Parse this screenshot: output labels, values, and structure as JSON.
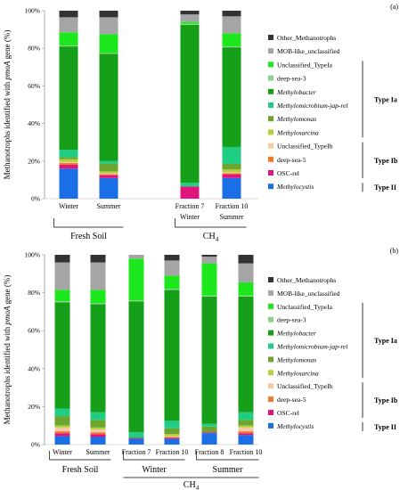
{
  "colors": {
    "Methylocystis": "#1a6fe6",
    "OSC-rel": "#e0147d",
    "deep-sea-5": "#f07a2a",
    "Unclassified_TypeIb": "#f7c9a6",
    "Methylosarcina": "#b0d33b",
    "Methylomonas": "#6ea52f",
    "Methylomicrobium-jap-rel": "#1fce82",
    "Methylobacter": "#16a019",
    "deep-sea-3": "#8fd08c",
    "Unclassified_TypeIa": "#1de81d",
    "MOB-like_unclassified": "#a5a5a5",
    "Other_Methanotrophs": "#333333"
  },
  "chart_data": [
    {
      "type": "stacked-bar",
      "panel_label": "(a)",
      "ylabel_pre": "Methanotrophs identified with ",
      "ylabel_gene": "pmoA",
      "ylabel_post": " gene (%)",
      "yticks": [
        "0%",
        "20%",
        "40%",
        "60%",
        "80%",
        "100%"
      ],
      "ylim": [
        0,
        100
      ],
      "categories": [
        "Winter",
        "Summer",
        "Fraction 7",
        "Fraction 10"
      ],
      "subcats": [
        "",
        "",
        "Winter",
        "Summer"
      ],
      "groups": [
        {
          "label": "Fresh Soil",
          "from": 0,
          "to": 1
        },
        {
          "label": "CH4",
          "from": 2,
          "to": 3
        }
      ],
      "series": [
        {
          "name": "Methylocystis",
          "values": [
            16,
            11,
            0,
            11
          ]
        },
        {
          "name": "OSC-rel",
          "values": [
            2,
            1.5,
            6.5,
            2
          ]
        },
        {
          "name": "deep-sea-5",
          "values": [
            1,
            0.5,
            0,
            0.5
          ]
        },
        {
          "name": "Unclassified_TypeIb",
          "values": [
            0.5,
            0.5,
            0,
            0.5
          ]
        },
        {
          "name": "Methylosarcina",
          "values": [
            1.5,
            1,
            0,
            1.5
          ]
        },
        {
          "name": "Methylomonas",
          "values": [
            1,
            4,
            0,
            3
          ]
        },
        {
          "name": "Methylomicrobium-jap-rel",
          "values": [
            4,
            1.5,
            2,
            9
          ]
        },
        {
          "name": "Methylobacter",
          "values": [
            55,
            57,
            84,
            53
          ]
        },
        {
          "name": "deep-sea-3",
          "values": [
            0.5,
            0.5,
            0.5,
            0.5
          ]
        },
        {
          "name": "Unclassified_TypeIa",
          "values": [
            7,
            10,
            1,
            7
          ]
        },
        {
          "name": "MOB-like_unclassified",
          "values": [
            8,
            9,
            4,
            9
          ]
        },
        {
          "name": "Other_Methanotrophs",
          "values": [
            3.5,
            3.5,
            2,
            3
          ]
        }
      ]
    },
    {
      "type": "stacked-bar",
      "panel_label": "(b)",
      "ylabel_pre": "Methanotrophs identified with ",
      "ylabel_gene": "pmoA",
      "ylabel_post": " gene (%)",
      "yticks": [
        "0%",
        "20%",
        "40%",
        "60%",
        "80%",
        "100%"
      ],
      "ylim": [
        0,
        100
      ],
      "categories": [
        "Winter",
        "Summer",
        "Fraction 7",
        "Fraction 10",
        "Fraction 8",
        "Fraction 10"
      ],
      "subcats": [],
      "groups": [
        {
          "label": "Fresh Soil",
          "from": 0,
          "to": 1
        },
        {
          "label": "Winter",
          "from": 2,
          "to": 3
        },
        {
          "label": "Summer",
          "from": 4,
          "to": 5
        }
      ],
      "supergroup": {
        "label": "CH4",
        "from": 2,
        "to": 5
      },
      "series": [
        {
          "name": "Methylocystis",
          "values": [
            4.5,
            4,
            3,
            3,
            6,
            5
          ]
        },
        {
          "name": "OSC-rel",
          "values": [
            1.5,
            1.5,
            0.5,
            0.5,
            0.5,
            1
          ]
        },
        {
          "name": "deep-sea-5",
          "values": [
            1,
            1,
            0,
            0.5,
            0,
            1
          ]
        },
        {
          "name": "Unclassified_TypeIb",
          "values": [
            2,
            1.5,
            0,
            0.5,
            0,
            2
          ]
        },
        {
          "name": "Methylosarcina",
          "values": [
            1,
            1,
            0,
            1,
            0,
            1
          ]
        },
        {
          "name": "Methylomonas",
          "values": [
            5,
            4,
            0,
            3,
            3,
            3
          ]
        },
        {
          "name": "Methylomicrobium-jap-rel",
          "values": [
            4,
            4,
            3,
            4,
            1.5,
            4
          ]
        },
        {
          "name": "Methylobacter",
          "values": [
            56,
            57,
            69,
            69,
            67,
            61
          ]
        },
        {
          "name": "deep-sea-3",
          "values": [
            0.5,
            0.5,
            0.5,
            0.5,
            0.5,
            0.5
          ]
        },
        {
          "name": "Unclassified_TypeIa",
          "values": [
            6,
            7,
            22,
            7,
            17,
            7
          ]
        },
        {
          "name": "MOB-like_unclassified",
          "values": [
            14.5,
            14.5,
            2,
            8,
            3.5,
            10
          ]
        },
        {
          "name": "Other_Methanotrophs",
          "values": [
            4,
            4,
            0,
            3,
            1,
            4.5
          ]
        }
      ]
    }
  ],
  "legend": {
    "items": [
      {
        "key": "Other_Methanotrophs",
        "label": "Other_Methanotrophs",
        "italic": false
      },
      {
        "key": "MOB-like_unclassified",
        "label": "MOB-like_unclassified",
        "italic": false
      },
      {
        "key": "Unclassified_TypeIa",
        "label": "Unclassified_TypeIa",
        "italic": false
      },
      {
        "key": "deep-sea-3",
        "label": "deep-sea-3",
        "italic": false
      },
      {
        "key": "Methylobacter",
        "label": "Methylobacter",
        "italic": true
      },
      {
        "key": "Methylomicrobium-jap-rel",
        "label": "Methylomicrobium-jap-rel",
        "italic": true
      },
      {
        "key": "Methylomonas",
        "label": "Methylomonas",
        "italic": true
      },
      {
        "key": "Methylosarcina",
        "label": "Methylosarcina",
        "italic": true
      },
      {
        "key": "Unclassified_TypeIb",
        "label": "Unclassified_TypeIb",
        "italic": false
      },
      {
        "key": "deep-sea-5",
        "label": "deep-sea-5",
        "italic": false
      },
      {
        "key": "OSC-rel",
        "label": "OSC-rel",
        "italic": false
      },
      {
        "key": "Methylocystis",
        "label": "Methylocystis",
        "italic": true
      }
    ],
    "type_groups": [
      {
        "label": "Type Ia",
        "from": 2,
        "to": 7
      },
      {
        "label": "Type Ib",
        "from": 8,
        "to": 10
      },
      {
        "label": "Type II",
        "from": 11,
        "to": 11
      }
    ]
  }
}
